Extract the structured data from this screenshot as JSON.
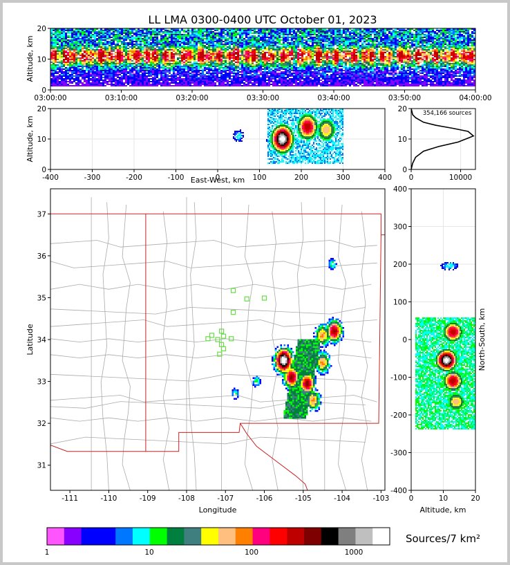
{
  "title": "LL LMA 0300-0400 UTC October 01, 2023",
  "colorbar_units": "Sources/7 km²",
  "colors": {
    "frame": "#c8c8c8",
    "state_lines": "#cc2020",
    "county_lines": "#aaaaaa",
    "stations": "#66dd44",
    "axes": "#000000",
    "grid": "#e6e6e6"
  },
  "chart_data": [
    {
      "id": "time_altitude",
      "type": "heatmap",
      "xlabel": "",
      "ylabel": "Altitude, km",
      "xlim": [
        "03:00:00",
        "04:00:00"
      ],
      "ylim": [
        0,
        20
      ],
      "x_ticks": [
        "03:00:00",
        "03:10:00",
        "03:20:00",
        "03:30:00",
        "03:40:00",
        "03:50:00",
        "04:00:00"
      ],
      "y_ticks": [
        0,
        10,
        20
      ],
      "density_profile": {
        "peak_altitude_km": 11,
        "core_band_km": [
          7,
          15
        ],
        "extent_km": [
          1,
          20
        ]
      }
    },
    {
      "id": "eastwest_altitude",
      "type": "heatmap",
      "xlabel": "East-West, km",
      "ylabel": "Altitude, km",
      "xlim": [
        -400,
        400
      ],
      "ylim": [
        0,
        20
      ],
      "x_ticks": [
        -400,
        -300,
        -200,
        -100,
        0,
        100,
        200,
        300,
        400
      ],
      "y_ticks": [
        0,
        10,
        20
      ],
      "clusters": [
        {
          "ew_km": 155,
          "alt_km": 10,
          "level": "max"
        },
        {
          "ew_km": 215,
          "alt_km": 14,
          "level": "high"
        },
        {
          "ew_km": 260,
          "alt_km": 13,
          "level": "medium"
        },
        {
          "ew_km": 50,
          "alt_km": 11,
          "level": "low"
        }
      ]
    },
    {
      "id": "altitude_histogram",
      "type": "line",
      "annotation": "354,166 sources",
      "xlim": [
        0,
        13000
      ],
      "ylim": [
        0,
        20
      ],
      "x_ticks": [
        0,
        10000
      ],
      "y_ticks": [
        0,
        10,
        20
      ],
      "x": [
        0,
        300,
        900,
        2500,
        5500,
        9500,
        12600,
        11500,
        8500,
        5000,
        2500,
        900,
        300,
        80,
        0
      ],
      "y": [
        0,
        2,
        4,
        6,
        7.5,
        9,
        11,
        12.5,
        13.5,
        14.5,
        15.5,
        17,
        18,
        19.5,
        20
      ]
    },
    {
      "id": "plan_view",
      "type": "heatmap",
      "xlabel": "Longitude",
      "ylabel": "Latitude",
      "xlim": [
        -111.5,
        -102.9
      ],
      "ylim": [
        30.4,
        37.6
      ],
      "x_ticks": [
        -111,
        -110,
        -109,
        -108,
        -107,
        -106,
        -105,
        -104,
        -103
      ],
      "y_ticks": [
        31,
        32,
        33,
        34,
        35,
        36,
        37
      ],
      "stations": [
        [
          -106.8,
          35.17
        ],
        [
          -106.45,
          34.97
        ],
        [
          -106.0,
          34.99
        ],
        [
          -106.8,
          34.65
        ],
        [
          -107.1,
          34.2
        ],
        [
          -107.35,
          34.1
        ],
        [
          -107.45,
          34.02
        ],
        [
          -107.2,
          34.0
        ],
        [
          -107.05,
          34.08
        ],
        [
          -106.85,
          34.02
        ],
        [
          -107.1,
          33.88
        ],
        [
          -107.05,
          33.78
        ],
        [
          -107.15,
          33.65
        ]
      ],
      "clusters": [
        {
          "lon": -105.5,
          "lat": 33.5,
          "level": "max"
        },
        {
          "lon": -105.3,
          "lat": 33.1,
          "level": "high"
        },
        {
          "lon": -104.9,
          "lat": 32.95,
          "level": "high"
        },
        {
          "lon": -104.75,
          "lat": 32.55,
          "level": "medium"
        },
        {
          "lon": -104.2,
          "lat": 34.2,
          "level": "high"
        },
        {
          "lon": -104.5,
          "lat": 34.1,
          "level": "medium"
        },
        {
          "lon": -104.5,
          "lat": 33.45,
          "level": "medium"
        },
        {
          "lon": -104.25,
          "lat": 35.8,
          "level": "low"
        },
        {
          "lon": -106.2,
          "lat": 33.0,
          "level": "low"
        },
        {
          "lon": -106.75,
          "lat": 32.7,
          "level": "low"
        }
      ]
    },
    {
      "id": "altitude_northsouth",
      "type": "heatmap",
      "xlabel": "Altitude, km",
      "ylabel": "North-South, km",
      "xlim": [
        0,
        20
      ],
      "ylim": [
        -400,
        400
      ],
      "x_ticks": [
        0,
        10,
        20
      ],
      "y_ticks": [
        -400,
        -300,
        -200,
        -100,
        0,
        100,
        200,
        300,
        400
      ],
      "clusters": [
        {
          "alt_km": 11,
          "ns_km": -55,
          "level": "max"
        },
        {
          "alt_km": 13,
          "ns_km": 20,
          "level": "high"
        },
        {
          "alt_km": 13,
          "ns_km": -110,
          "level": "high"
        },
        {
          "alt_km": 14,
          "ns_km": -165,
          "level": "medium"
        },
        {
          "alt_km": 12,
          "ns_km": 195,
          "level": "low"
        }
      ]
    },
    {
      "id": "colorbar",
      "type": "colorbar",
      "tick_labels": [
        "1",
        "10",
        "100",
        "1000"
      ],
      "colors": [
        "#ff55ff",
        "#8800ff",
        "#0000ff",
        "#0000ff",
        "#0077ff",
        "#00ffff",
        "#00ff00",
        "#007f3f",
        "#3f7f7f",
        "#ffff00",
        "#ffbf7f",
        "#ff7f00",
        "#ff007f",
        "#ff0000",
        "#bf0000",
        "#7f0000",
        "#000000",
        "#7f7f7f",
        "#bfbfbf",
        "#ffffff"
      ]
    }
  ]
}
